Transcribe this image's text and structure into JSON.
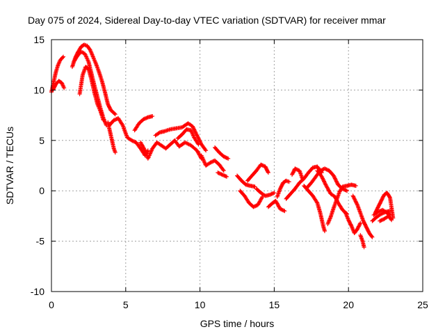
{
  "chart_data": {
    "type": "scatter",
    "title": "Day 075 of 2024, Sidereal Day-to-day VTEC variation (SDTVAR) for receiver mmar",
    "xlabel": "GPS time / hours",
    "ylabel": "SDTVAR / TECUs",
    "xlim": [
      0,
      25
    ],
    "ylim": [
      -10,
      15
    ],
    "xticks": [
      0,
      5,
      10,
      15,
      20,
      25
    ],
    "yticks": [
      -10,
      -5,
      0,
      5,
      10,
      15
    ],
    "xtick_labels": [
      "0",
      "5",
      "10",
      "15",
      "20",
      "25"
    ],
    "ytick_labels": [
      "-10",
      "-5",
      "0",
      "5",
      "10",
      "15"
    ],
    "grid": true,
    "marker": "+",
    "series": [
      {
        "name": "SDTVAR",
        "color": "#ff0000",
        "segments": [
          [
            [
              0.0,
              9.8
            ],
            [
              0.15,
              10.8
            ],
            [
              0.3,
              11.8
            ],
            [
              0.45,
              12.5
            ],
            [
              0.6,
              13.0
            ],
            [
              0.8,
              13.3
            ]
          ],
          [
            [
              0.1,
              10.0
            ],
            [
              0.3,
              10.6
            ],
            [
              0.5,
              10.9
            ],
            [
              0.7,
              10.7
            ],
            [
              0.85,
              10.2
            ]
          ],
          [
            [
              1.4,
              12.3
            ],
            [
              1.6,
              13.2
            ],
            [
              1.8,
              13.8
            ],
            [
              2.0,
              14.3
            ],
            [
              2.2,
              14.5
            ],
            [
              2.4,
              14.4
            ],
            [
              2.6,
              14.0
            ],
            [
              2.8,
              13.3
            ],
            [
              3.0,
              12.6
            ],
            [
              3.2,
              11.8
            ],
            [
              3.4,
              10.9
            ],
            [
              3.6,
              9.8
            ],
            [
              3.8,
              8.6
            ],
            [
              4.0,
              8.0
            ],
            [
              4.3,
              7.6
            ]
          ],
          [
            [
              1.5,
              12.8
            ],
            [
              1.75,
              13.4
            ],
            [
              2.0,
              13.8
            ],
            [
              2.25,
              13.6
            ],
            [
              2.5,
              12.8
            ],
            [
              2.7,
              11.6
            ],
            [
              2.9,
              10.4
            ],
            [
              3.1,
              9.3
            ],
            [
              3.3,
              8.2
            ],
            [
              3.5,
              7.2
            ],
            [
              3.7,
              6.5
            ]
          ],
          [
            [
              1.9,
              9.6
            ],
            [
              2.1,
              11.5
            ],
            [
              2.3,
              12.3
            ],
            [
              2.5,
              12.1
            ],
            [
              2.7,
              11.0
            ],
            [
              2.9,
              9.7
            ],
            [
              3.1,
              8.6
            ],
            [
              3.3,
              7.9
            ],
            [
              3.5,
              7.0
            ]
          ],
          [
            [
              3.8,
              6.8
            ],
            [
              4.0,
              5.5
            ],
            [
              4.2,
              4.2
            ],
            [
              4.3,
              3.8
            ]
          ],
          [
            [
              3.9,
              6.5
            ],
            [
              4.2,
              7.0
            ],
            [
              4.5,
              7.2
            ],
            [
              4.8,
              6.5
            ],
            [
              5.1,
              5.3
            ],
            [
              5.4,
              5.0
            ],
            [
              5.7,
              4.8
            ],
            [
              6.0,
              4.2
            ],
            [
              6.3,
              3.5
            ],
            [
              6.5,
              4.0
            ]
          ],
          [
            [
              5.6,
              6.0
            ],
            [
              5.9,
              6.7
            ],
            [
              6.2,
              7.1
            ],
            [
              6.5,
              7.3
            ],
            [
              6.8,
              7.4
            ]
          ],
          [
            [
              6.0,
              4.8
            ],
            [
              6.3,
              4.0
            ],
            [
              6.5,
              3.2
            ],
            [
              6.8,
              4.2
            ],
            [
              7.1,
              4.8
            ],
            [
              7.4,
              4.5
            ],
            [
              7.7,
              4.2
            ],
            [
              8.0,
              4.6
            ],
            [
              8.3,
              5.0
            ],
            [
              8.6,
              4.4
            ],
            [
              9.0,
              4.8
            ],
            [
              9.4,
              4.5
            ],
            [
              9.8,
              4.0
            ],
            [
              10.1,
              3.2
            ]
          ],
          [
            [
              7.0,
              5.5
            ],
            [
              7.3,
              5.8
            ],
            [
              7.6,
              5.9
            ],
            [
              8.0,
              6.1
            ],
            [
              8.4,
              6.2
            ],
            [
              8.8,
              6.3
            ],
            [
              9.2,
              6.7
            ],
            [
              9.5,
              6.4
            ],
            [
              9.8,
              5.5
            ],
            [
              10.1,
              4.6
            ],
            [
              10.4,
              4.0
            ]
          ],
          [
            [
              8.5,
              5.2
            ],
            [
              8.8,
              5.6
            ],
            [
              9.1,
              6.1
            ],
            [
              9.4,
              6.0
            ],
            [
              9.6,
              5.3
            ],
            [
              9.9,
              4.6
            ]
          ],
          [
            [
              10.1,
              3.5
            ],
            [
              10.4,
              2.5
            ],
            [
              10.7,
              2.8
            ],
            [
              11.0,
              3.0
            ],
            [
              11.3,
              2.6
            ],
            [
              11.6,
              2.0
            ]
          ],
          [
            [
              11.0,
              4.3
            ],
            [
              11.3,
              3.8
            ],
            [
              11.6,
              3.4
            ],
            [
              11.9,
              3.2
            ]
          ],
          [
            [
              11.2,
              1.8
            ],
            [
              11.5,
              1.6
            ],
            [
              11.8,
              1.4
            ]
          ],
          [
            [
              12.5,
              1.5
            ],
            [
              12.8,
              1.0
            ],
            [
              13.1,
              0.6
            ],
            [
              13.4,
              0.5
            ],
            [
              13.7,
              0.4
            ]
          ],
          [
            [
              12.7,
              0.0
            ],
            [
              13.0,
              -0.5
            ],
            [
              13.3,
              -1.2
            ],
            [
              13.6,
              -1.6
            ],
            [
              13.9,
              -1.4
            ],
            [
              14.2,
              -0.6
            ]
          ],
          [
            [
              13.2,
              1.0
            ],
            [
              13.5,
              1.5
            ],
            [
              13.8,
              2.0
            ],
            [
              14.1,
              2.6
            ],
            [
              14.4,
              2.4
            ],
            [
              14.6,
              1.8
            ]
          ],
          [
            [
              13.8,
              0.2
            ],
            [
              14.1,
              -0.2
            ],
            [
              14.4,
              -0.5
            ],
            [
              14.7,
              -0.4
            ],
            [
              15.0,
              -0.2
            ]
          ],
          [
            [
              14.6,
              -1.6
            ],
            [
              14.9,
              -1.2
            ],
            [
              15.1,
              -1.0
            ],
            [
              15.4,
              -1.8
            ],
            [
              15.7,
              -2.0
            ]
          ],
          [
            [
              15.2,
              -0.6
            ],
            [
              15.4,
              0.2
            ],
            [
              15.6,
              0.8
            ],
            [
              15.8,
              1.0
            ],
            [
              16.0,
              0.9
            ]
          ],
          [
            [
              15.8,
              -0.8
            ],
            [
              16.1,
              -0.3
            ],
            [
              16.4,
              0.2
            ],
            [
              16.7,
              0.8
            ],
            [
              17.0,
              1.2
            ],
            [
              17.3,
              1.8
            ],
            [
              17.6,
              2.3
            ],
            [
              17.9,
              2.4
            ],
            [
              18.2,
              1.8
            ]
          ],
          [
            [
              16.2,
              1.6
            ],
            [
              16.4,
              2.2
            ],
            [
              16.7,
              2.0
            ],
            [
              16.9,
              1.2
            ]
          ],
          [
            [
              17.0,
              0.5
            ],
            [
              17.3,
              0.0
            ],
            [
              17.6,
              -0.5
            ],
            [
              17.9,
              -1.2
            ],
            [
              18.1,
              -2.2
            ],
            [
              18.3,
              -3.5
            ],
            [
              18.4,
              -4.0
            ]
          ],
          [
            [
              17.2,
              0.3
            ],
            [
              17.5,
              0.8
            ],
            [
              17.8,
              1.4
            ],
            [
              18.1,
              2.0
            ],
            [
              18.4,
              2.2
            ],
            [
              18.7,
              2.0
            ],
            [
              19.0,
              1.5
            ],
            [
              19.3,
              0.6
            ],
            [
              19.6,
              0.2
            ],
            [
              19.9,
              0.0
            ]
          ],
          [
            [
              17.9,
              2.0
            ],
            [
              18.2,
              1.4
            ],
            [
              18.5,
              0.5
            ],
            [
              18.8,
              -0.3
            ],
            [
              19.1,
              -0.6
            ],
            [
              19.3,
              -1.2
            ],
            [
              19.6,
              -1.9
            ],
            [
              19.9,
              -2.3
            ]
          ],
          [
            [
              18.6,
              -3.3
            ],
            [
              18.8,
              -2.6
            ],
            [
              19.0,
              -1.7
            ],
            [
              19.2,
              -0.9
            ],
            [
              19.4,
              -0.1
            ],
            [
              19.6,
              0.4
            ],
            [
              19.9,
              0.5
            ],
            [
              20.2,
              0.6
            ],
            [
              20.5,
              0.5
            ]
          ],
          [
            [
              19.8,
              -2.2
            ],
            [
              20.0,
              -2.9
            ],
            [
              20.2,
              -3.5
            ],
            [
              20.4,
              -4.2
            ],
            [
              20.6,
              -3.8
            ],
            [
              20.8,
              -3.2
            ]
          ],
          [
            [
              20.3,
              -0.5
            ],
            [
              20.6,
              -1.4
            ],
            [
              20.8,
              -2.2
            ],
            [
              21.0,
              -3.0
            ],
            [
              21.2,
              -3.6
            ],
            [
              21.4,
              -4.2
            ],
            [
              21.6,
              -4.6
            ]
          ],
          [
            [
              20.8,
              -4.4
            ],
            [
              20.95,
              -5.0
            ],
            [
              21.05,
              -5.6
            ]
          ],
          [
            [
              21.6,
              -3.0
            ],
            [
              21.9,
              -2.6
            ],
            [
              22.2,
              -2.3
            ],
            [
              22.5,
              -2.1
            ],
            [
              22.8,
              -2.0
            ]
          ],
          [
            [
              21.8,
              -2.2
            ],
            [
              22.0,
              -1.6
            ],
            [
              22.2,
              -1.0
            ],
            [
              22.4,
              -0.4
            ],
            [
              22.6,
              -0.2
            ],
            [
              22.8,
              -0.7
            ],
            [
              23.0,
              -2.7
            ]
          ],
          [
            [
              21.7,
              -2.4
            ],
            [
              22.0,
              -2.1
            ],
            [
              22.3,
              -1.9
            ],
            [
              22.6,
              -2.2
            ],
            [
              22.8,
              -2.4
            ]
          ],
          [
            [
              22.1,
              -3.0
            ],
            [
              22.4,
              -2.8
            ],
            [
              22.7,
              -2.5
            ],
            [
              22.9,
              -2.9
            ]
          ]
        ]
      }
    ]
  }
}
